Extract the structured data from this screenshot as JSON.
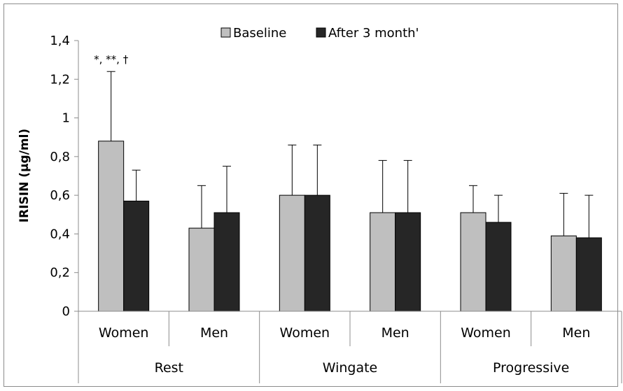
{
  "chart_data": {
    "type": "bar",
    "ylabel": "IRISIN  (µg/ml)",
    "ylim": [
      0,
      1.4
    ],
    "yticks": [
      0,
      0.2,
      0.4,
      0.6,
      0.8,
      1,
      1.2,
      1.4
    ],
    "ytick_labels": [
      "0",
      "0,2",
      "0,4",
      "0,6",
      "0,8",
      "1",
      "1,2",
      "1,4"
    ],
    "categories": [
      "Women",
      "Men",
      "Women",
      "Men",
      "Women",
      "Men"
    ],
    "groups": [
      {
        "label": "Rest",
        "span": [
          0,
          1
        ]
      },
      {
        "label": "Wingate",
        "span": [
          2,
          3
        ]
      },
      {
        "label": "Progressive",
        "span": [
          4,
          5
        ]
      }
    ],
    "series": [
      {
        "name": "Baseline",
        "color": "#bfbfbf",
        "values": [
          0.88,
          0.43,
          0.6,
          0.51,
          0.51,
          0.39
        ],
        "error_upper": [
          1.24,
          0.65,
          0.86,
          0.78,
          0.65,
          0.61
        ]
      },
      {
        "name": "After 3 month'",
        "color": "#262626",
        "values": [
          0.57,
          0.51,
          0.6,
          0.51,
          0.46,
          0.38
        ],
        "error_upper": [
          0.73,
          0.75,
          0.86,
          0.78,
          0.6,
          0.6
        ]
      }
    ],
    "legend_position": "top-center",
    "grid": false,
    "annotations": [
      {
        "text": "*, **, †",
        "category_index": 0
      }
    ]
  }
}
